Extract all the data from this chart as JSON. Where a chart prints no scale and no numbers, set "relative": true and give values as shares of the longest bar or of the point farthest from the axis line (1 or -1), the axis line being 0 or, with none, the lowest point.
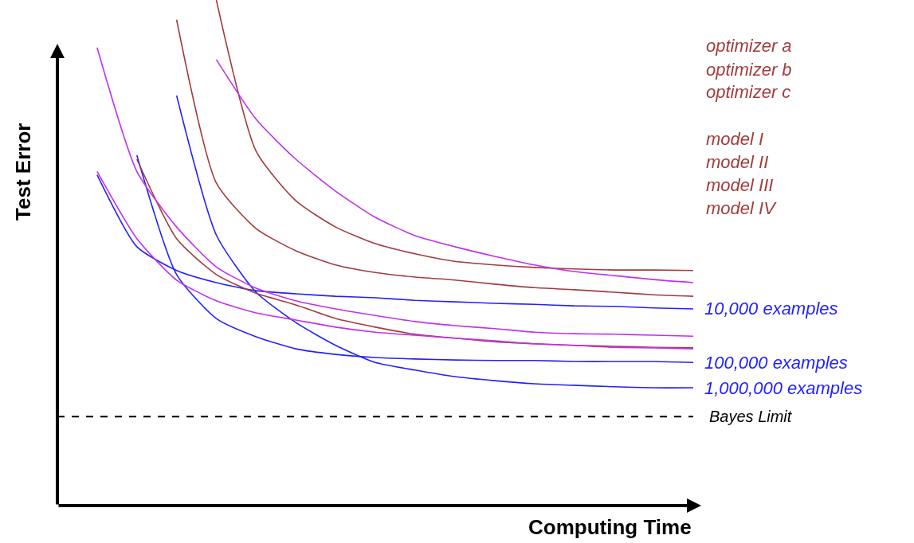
{
  "chart_data": {
    "type": "line",
    "relative": true,
    "xlabel": "Computing Time",
    "ylabel": "Test Error",
    "legend": false,
    "grid": false,
    "marker": "none",
    "line_style": "solid",
    "categories": [
      null,
      null,
      null,
      null,
      null,
      null,
      null,
      null,
      null,
      null,
      null,
      null,
      null,
      null,
      null,
      null,
      null
    ],
    "series": [
      {
        "name": "10,000 examples",
        "color": "#2222ff",
        "values": [
          null,
          0.654,
          0.512,
          0.465,
          0.441,
          0.425,
          0.419,
          0.414,
          0.411,
          0.406,
          0.403,
          0.4,
          0.398,
          0.395,
          0.394,
          0.391,
          0.389
        ]
      },
      {
        "name": "100,000 examples",
        "color": "#2222ff",
        "values": [
          null,
          null,
          0.693,
          0.457,
          0.37,
          0.334,
          0.31,
          0.299,
          0.293,
          0.29,
          0.288,
          0.287,
          0.287,
          0.285,
          0.285,
          0.285,
          0.283
        ]
      },
      {
        "name": "1,000,000 examples",
        "color": "#2222ff",
        "values": [
          null,
          null,
          null,
          0.811,
          0.535,
          0.422,
          0.362,
          0.317,
          0.283,
          0.268,
          0.255,
          0.247,
          0.241,
          0.238,
          0.235,
          0.233,
          0.233
        ]
      },
      {
        "color": "#a33c3c",
        "values": [
          null,
          null,
          0.685,
          0.528,
          0.457,
          0.42,
          0.397,
          0.37,
          0.353,
          0.339,
          0.331,
          0.324,
          0.32,
          0.317,
          0.315,
          0.313,
          0.312
        ]
      },
      {
        "color": "#a33c3c",
        "values": [
          null,
          null,
          null,
          0.961,
          0.638,
          0.548,
          0.504,
          0.476,
          0.461,
          0.452,
          0.446,
          0.438,
          0.431,
          0.427,
          0.422,
          0.417,
          0.414
        ]
      },
      {
        "color": "#a33c3c",
        "values": [
          null,
          null,
          null,
          null,
          1.0,
          0.701,
          0.603,
          0.551,
          0.518,
          0.498,
          0.483,
          0.476,
          0.471,
          0.468,
          0.466,
          0.466,
          0.465
        ]
      },
      {
        "color": "#c030f0",
        "values": [
          null,
          0.661,
          0.528,
          0.446,
          0.405,
          0.381,
          0.367,
          0.353,
          0.343,
          0.337,
          0.331,
          0.326,
          0.32,
          0.317,
          0.313,
          0.312,
          0.31
        ]
      },
      {
        "color": "#c030f0",
        "values": [
          null,
          0.906,
          0.661,
          0.551,
          0.472,
          0.43,
          0.405,
          0.389,
          0.376,
          0.364,
          0.356,
          0.35,
          0.343,
          0.34,
          0.339,
          0.337,
          0.335
        ]
      },
      {
        "color": "#c030f0",
        "values": [
          null,
          null,
          null,
          null,
          0.882,
          0.764,
          0.685,
          0.622,
          0.57,
          0.534,
          0.512,
          0.493,
          0.476,
          0.463,
          0.455,
          0.447,
          0.441
        ]
      }
    ],
    "ref_lines": [
      {
        "axis": "y",
        "value": 0.176,
        "label": "Bayes Limit",
        "color": "#000000",
        "line_style": "dashed"
      }
    ],
    "annotations": [
      "optimizer a",
      "optimizer b",
      "optimizer c",
      "model I",
      "model II",
      "model III",
      "model IV"
    ]
  }
}
